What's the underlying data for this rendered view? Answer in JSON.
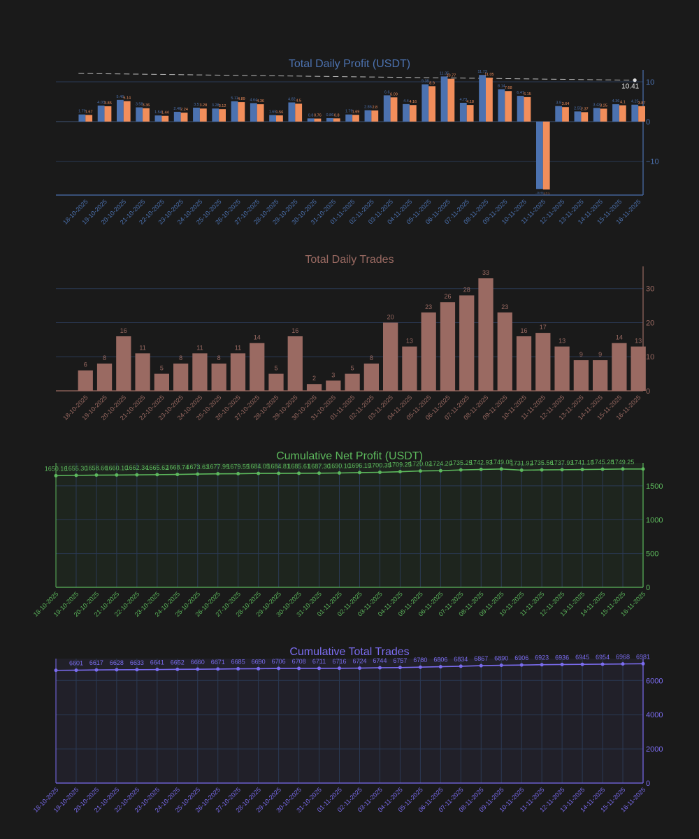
{
  "theme": {
    "background": "#1a1a1a",
    "grid": "#2b3a55",
    "blue": "#4c72b0",
    "orange": "#f28e5b",
    "trades": "#9a6a62",
    "green": "#5cb85c",
    "purple": "#7b6cf0"
  },
  "chart_data": [
    {
      "id": "daily-profit",
      "type": "bar",
      "title": "Total Daily Profit (USDT)",
      "color": "#4c72b0",
      "categories": [
        "18-10-2025",
        "19-10-2025",
        "20-10-2025",
        "21-10-2025",
        "22-10-2025",
        "23-10-2025",
        "24-10-2025",
        "25-10-2025",
        "26-10-2025",
        "27-10-2025",
        "28-10-2025",
        "29-10-2025",
        "30-10-2025",
        "31-10-2025",
        "01-11-2025",
        "02-11-2025",
        "03-11-2025",
        "04-11-2025",
        "05-11-2025",
        "06-11-2025",
        "07-11-2025",
        "08-11-2025",
        "09-11-2025",
        "10-11-2025",
        "11-11-2025",
        "12-11-2025",
        "13-11-2025",
        "14-11-2025",
        "15-11-2025",
        "16-11-2025"
      ],
      "series": [
        {
          "color": "#4c72b0",
          "values": [
            1.79,
            4.03,
            5.46,
            3.58,
            1.54,
            2.46,
            3.5,
            3.28,
            5.11,
            4.64,
            1.65,
            4.82,
            0.8,
            0.86,
            1.79,
            2.86,
            6.6,
            4.4,
            9.38,
            11.35,
            4.73,
            11.73,
            8.14,
            6.47,
            -16.96,
            3.9,
            2.55,
            3.43,
            4.36,
            4.25
          ]
        },
        {
          "color": "#f28e5b",
          "values": [
            1.67,
            3.85,
            5.14,
            3.36,
            1.44,
            2.24,
            3.28,
            3.12,
            4.89,
            4.36,
            1.56,
            4.5,
            0.76,
            0.8,
            1.69,
            2.8,
            6.09,
            4.16,
            8.9,
            10.77,
            4.18,
            11.05,
            7.68,
            6.15,
            -17.1,
            3.64,
            2.37,
            3.25,
            4.1,
            3.87
          ]
        }
      ],
      "reference_line": {
        "value": 10.41,
        "label": "10.41"
      },
      "ylim": [
        -18.5,
        13.0
      ],
      "yticks": [
        "−10",
        "0",
        "10"
      ],
      "ytick_values": [
        -10,
        0,
        10
      ]
    },
    {
      "id": "daily-trades",
      "type": "bar",
      "title": "Total Daily Trades",
      "color": "#9a6a62",
      "categories": [
        "18-10-2025",
        "19-10-2025",
        "20-10-2025",
        "21-10-2025",
        "22-10-2025",
        "23-10-2025",
        "24-10-2025",
        "25-10-2025",
        "26-10-2025",
        "27-10-2025",
        "28-10-2025",
        "29-10-2025",
        "30-10-2025",
        "31-10-2025",
        "01-11-2025",
        "02-11-2025",
        "03-11-2025",
        "04-11-2025",
        "05-11-2025",
        "06-11-2025",
        "07-11-2025",
        "08-11-2025",
        "09-11-2025",
        "10-11-2025",
        "11-11-2025",
        "12-11-2025",
        "13-11-2025",
        "14-11-2025",
        "15-11-2025",
        "16-11-2025"
      ],
      "values": [
        6,
        8,
        16,
        11,
        5,
        8,
        11,
        8,
        11,
        14,
        5,
        16,
        2,
        3,
        5,
        8,
        20,
        13,
        23,
        26,
        28,
        33,
        23,
        16,
        17,
        13,
        9,
        9,
        14,
        13
      ],
      "ylim": [
        0,
        36.5
      ],
      "yticks": [
        "0",
        "10",
        "20",
        "30"
      ],
      "ytick_values": [
        0,
        10,
        20,
        30
      ]
    },
    {
      "id": "cumulative-profit",
      "type": "area",
      "title": "Cumulative Net Profit (USDT)",
      "color": "#5cb85c",
      "categories": [
        "18-10-2025",
        "19-10-2025",
        "20-10-2025",
        "21-10-2025",
        "22-10-2025",
        "23-10-2025",
        "24-10-2025",
        "25-10-2025",
        "26-10-2025",
        "27-10-2025",
        "28-10-2025",
        "29-10-2025",
        "30-10-2025",
        "31-10-2025",
        "01-11-2025",
        "02-11-2025",
        "03-11-2025",
        "04-11-2025",
        "05-11-2025",
        "06-11-2025",
        "07-11-2025",
        "08-11-2025",
        "09-11-2025",
        "10-11-2025",
        "11-11-2025",
        "12-11-2025",
        "13-11-2025",
        "14-11-2025",
        "15-11-2025",
        "16-11-2025"
      ],
      "values": [
        1650.16,
        1655.3,
        1658.66,
        1660.1,
        1662.34,
        1665.62,
        1668.74,
        1673.63,
        1677.99,
        1679.55,
        1684.05,
        1684.81,
        1685.61,
        1687.3,
        1690.1,
        1696.19,
        1700.35,
        1709.25,
        1720.02,
        1724.2,
        1735.25,
        1742.93,
        1749.08,
        1731.92,
        1735.56,
        1737.93,
        1741.18,
        1745.28,
        1749.25,
        1749.25
      ],
      "labels": [
        "1650.16",
        "1655.30",
        "1658.66",
        "1660.10",
        "1662.34",
        "1665.62",
        "1668.74",
        "1673.63",
        "1677.99",
        "1679.55",
        "1684.05",
        "1684.81",
        "1685.61",
        "1687.30",
        "1690.10",
        "1696.19",
        "1700.35",
        "1709.25",
        "1720.02",
        "1724.20",
        "1735.25",
        "1742.93",
        "1749.08",
        "1731.92",
        "1735.56",
        "1737.93",
        "1741.18",
        "1745.28",
        "1749.25",
        ""
      ],
      "ylim": [
        0,
        1840
      ],
      "yticks": [
        "0",
        "500",
        "1000",
        "1500"
      ],
      "ytick_values": [
        0,
        500,
        1000,
        1500
      ]
    },
    {
      "id": "cumulative-trades",
      "type": "area",
      "title": "Cumulative Total Trades",
      "color": "#7b6cf0",
      "categories": [
        "18-10-2025",
        "19-10-2025",
        "20-10-2025",
        "21-10-2025",
        "22-10-2025",
        "23-10-2025",
        "24-10-2025",
        "25-10-2025",
        "26-10-2025",
        "27-10-2025",
        "28-10-2025",
        "29-10-2025",
        "30-10-2025",
        "31-10-2025",
        "01-11-2025",
        "02-11-2025",
        "03-11-2025",
        "04-11-2025",
        "05-11-2025",
        "06-11-2025",
        "07-11-2025",
        "08-11-2025",
        "09-11-2025",
        "10-11-2025",
        "11-11-2025",
        "12-11-2025",
        "13-11-2025",
        "14-11-2025",
        "15-11-2025",
        "16-11-2025"
      ],
      "values": [
        6595,
        6601,
        6617,
        6628,
        6633,
        6641,
        6652,
        6660,
        6671,
        6685,
        6690,
        6706,
        6708,
        6711,
        6716,
        6724,
        6744,
        6757,
        6780,
        6806,
        6834,
        6867,
        6890,
        6906,
        6923,
        6936,
        6945,
        6954,
        6968,
        6981
      ],
      "labels": [
        "",
        "6601",
        "6617",
        "6628",
        "6633",
        "6641",
        "6652",
        "6660",
        "6671",
        "6685",
        "6690",
        "6706",
        "6708",
        "6711",
        "6716",
        "6724",
        "6744",
        "6757",
        "6780",
        "6806",
        "6834",
        "6867",
        "6890",
        "6906",
        "6923",
        "6936",
        "6945",
        "6954",
        "6968",
        "6981"
      ],
      "ylim": [
        0,
        7280
      ],
      "yticks": [
        "0",
        "2000",
        "4000",
        "6000"
      ],
      "ytick_values": [
        0,
        2000,
        4000,
        6000
      ]
    }
  ]
}
